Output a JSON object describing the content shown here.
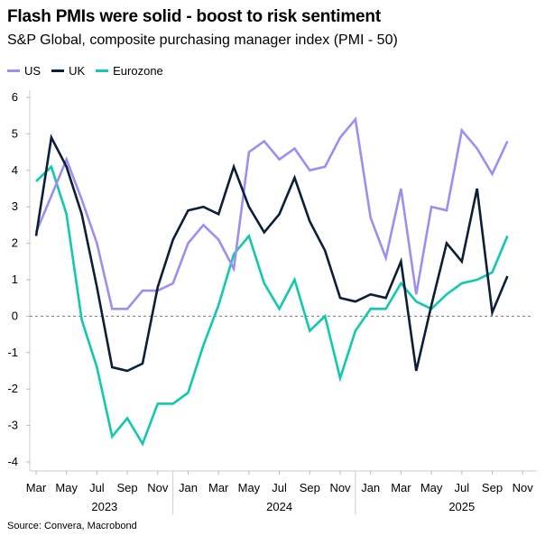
{
  "chart_data": {
    "type": "line",
    "title": "Flash PMIs were solid - boost to risk sentiment",
    "subtitle": "S&P Global, composite purchasing manager index (PMI - 50)",
    "source": "Source: Convera, Macrobond",
    "xlabel": "",
    "ylabel": "",
    "ylim": [
      -4,
      6
    ],
    "yticks": [
      "-4",
      "-3",
      "-2",
      "-1",
      "0",
      "1",
      "2",
      "3",
      "4",
      "5",
      "6"
    ],
    "x_start": "Mar 2023",
    "x_tick_labels": [
      "Mar",
      "May",
      "Jul",
      "Sep",
      "Nov",
      "Jan",
      "Mar",
      "May",
      "Jul",
      "Sep",
      "Nov",
      "Jan",
      "Mar",
      "May",
      "Jul",
      "Sep",
      "Nov"
    ],
    "year_labels": [
      "2023",
      "2024",
      "2025"
    ],
    "zero_line": "dashed",
    "legend_position": "top-left",
    "series": [
      {
        "name": "US",
        "color": "#9d8ef2",
        "values": [
          2.3,
          3.3,
          4.3,
          3.2,
          2.0,
          0.2,
          0.2,
          0.7,
          0.7,
          0.9,
          2.0,
          2.5,
          2.1,
          1.3,
          4.5,
          4.8,
          4.3,
          4.6,
          4.0,
          4.1,
          4.9,
          5.4,
          2.7,
          1.6,
          3.5,
          0.6,
          3.0,
          2.9,
          5.1,
          4.6,
          3.9,
          4.8
        ]
      },
      {
        "name": "UK",
        "color": "#0b1f36",
        "values": [
          2.2,
          4.9,
          4.1,
          2.8,
          0.8,
          -1.4,
          -1.5,
          -1.3,
          0.8,
          2.1,
          2.9,
          3.0,
          2.8,
          4.1,
          3.0,
          2.3,
          2.8,
          3.8,
          2.6,
          1.8,
          0.5,
          0.4,
          0.6,
          0.5,
          1.5,
          -1.5,
          0.3,
          2.0,
          1.5,
          3.5,
          0.1,
          1.1
        ]
      },
      {
        "name": "Eurozone",
        "color": "#12c9a9",
        "values": [
          3.7,
          4.1,
          2.8,
          -0.1,
          -1.4,
          -3.3,
          -2.8,
          -3.5,
          -2.4,
          -2.4,
          -2.1,
          -0.8,
          0.3,
          1.7,
          2.2,
          0.9,
          0.2,
          1.0,
          -0.4,
          0.0,
          -1.7,
          -0.4,
          0.2,
          0.2,
          0.9,
          0.4,
          0.2,
          0.6,
          0.9,
          1.0,
          1.2,
          2.2
        ]
      }
    ]
  }
}
